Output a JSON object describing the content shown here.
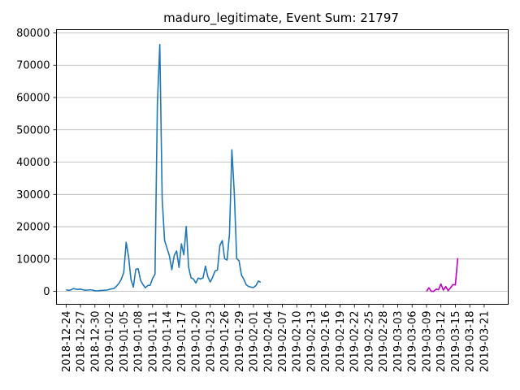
{
  "chart_data": {
    "type": "line",
    "title": "maduro_legitimate, Event Sum: 21797",
    "xlabel": "",
    "ylabel": "",
    "ylim": [
      -4000,
      81000
    ],
    "xlim": [
      "2018-12-22",
      "2019-03-26"
    ],
    "grid": {
      "y": true,
      "x": false
    },
    "legend": "none",
    "x_tick_labels": [
      "2018-12-24",
      "2018-12-27",
      "2018-12-30",
      "2019-01-02",
      "2019-01-05",
      "2019-01-08",
      "2019-01-11",
      "2019-01-14",
      "2019-01-17",
      "2019-01-20",
      "2019-01-23",
      "2019-01-26",
      "2019-01-29",
      "2019-02-01",
      "2019-02-04",
      "2019-02-07",
      "2019-02-10",
      "2019-02-13",
      "2019-02-16",
      "2019-02-19",
      "2019-02-22",
      "2019-02-25",
      "2019-02-28",
      "2019-03-03",
      "2019-03-06",
      "2019-03-09",
      "2019-03-12",
      "2019-03-15",
      "2019-03-18",
      "2019-03-21"
    ],
    "y_tick_labels": [
      "0",
      "10000",
      "20000",
      "30000",
      "40000",
      "50000",
      "60000",
      "70000",
      "80000"
    ],
    "y_ticks": [
      0,
      10000,
      20000,
      30000,
      40000,
      50000,
      60000,
      70000,
      80000
    ],
    "series": [
      {
        "color": "#1f77b4",
        "points": [
          [
            "2018-12-24T00:00",
            500
          ],
          [
            "2018-12-24T12:00",
            300
          ],
          [
            "2018-12-25T00:00",
            450
          ],
          [
            "2018-12-25T12:00",
            850
          ],
          [
            "2018-12-26T00:00",
            700
          ],
          [
            "2018-12-26T12:00",
            600
          ],
          [
            "2018-12-27T00:00",
            700
          ],
          [
            "2018-12-27T12:00",
            500
          ],
          [
            "2018-12-28T00:00",
            350
          ],
          [
            "2018-12-28T12:00",
            400
          ],
          [
            "2018-12-29T00:00",
            500
          ],
          [
            "2018-12-29T12:00",
            400
          ],
          [
            "2018-12-30T00:00",
            200
          ],
          [
            "2018-12-30T12:00",
            150
          ],
          [
            "2018-12-31T00:00",
            250
          ],
          [
            "2018-12-31T12:00",
            300
          ],
          [
            "2019-01-01T00:00",
            350
          ],
          [
            "2019-01-01T12:00",
            400
          ],
          [
            "2019-01-02T00:00",
            600
          ],
          [
            "2019-01-02T12:00",
            800
          ],
          [
            "2019-01-03T00:00",
            900
          ],
          [
            "2019-01-03T12:00",
            1600
          ],
          [
            "2019-01-04T00:00",
            2500
          ],
          [
            "2019-01-04T12:00",
            3800
          ],
          [
            "2019-01-05T00:00",
            5800
          ],
          [
            "2019-01-05T12:00",
            15200
          ],
          [
            "2019-01-06T00:00",
            10800
          ],
          [
            "2019-01-06T12:00",
            3700
          ],
          [
            "2019-01-07T00:00",
            1300
          ],
          [
            "2019-01-07T12:00",
            6800
          ],
          [
            "2019-01-08T00:00",
            7000
          ],
          [
            "2019-01-08T12:00",
            3400
          ],
          [
            "2019-01-09T00:00",
            2100
          ],
          [
            "2019-01-09T12:00",
            1100
          ],
          [
            "2019-01-10T00:00",
            1800
          ],
          [
            "2019-01-10T12:00",
            1900
          ],
          [
            "2019-01-11T00:00",
            4000
          ],
          [
            "2019-01-11T12:00",
            5300
          ],
          [
            "2019-01-12T00:00",
            57900
          ],
          [
            "2019-01-12T12:00",
            76400
          ],
          [
            "2019-01-13T00:00",
            28500
          ],
          [
            "2019-01-13T12:00",
            15700
          ],
          [
            "2019-01-14T00:00",
            13400
          ],
          [
            "2019-01-14T12:00",
            11000
          ],
          [
            "2019-01-15T00:00",
            6700
          ],
          [
            "2019-01-15T12:00",
            11100
          ],
          [
            "2019-01-16T00:00",
            12500
          ],
          [
            "2019-01-16T12:00",
            7400
          ],
          [
            "2019-01-17T00:00",
            14700
          ],
          [
            "2019-01-17T12:00",
            11300
          ],
          [
            "2019-01-18T00:00",
            20100
          ],
          [
            "2019-01-18T12:00",
            7400
          ],
          [
            "2019-01-19T00:00",
            4200
          ],
          [
            "2019-01-19T12:00",
            3800
          ],
          [
            "2019-01-20T00:00",
            2600
          ],
          [
            "2019-01-20T12:00",
            4100
          ],
          [
            "2019-01-21T00:00",
            3800
          ],
          [
            "2019-01-21T12:00",
            4200
          ],
          [
            "2019-01-22T00:00",
            7800
          ],
          [
            "2019-01-22T12:00",
            4500
          ],
          [
            "2019-01-23T00:00",
            2900
          ],
          [
            "2019-01-23T12:00",
            4400
          ],
          [
            "2019-01-24T00:00",
            6300
          ],
          [
            "2019-01-24T12:00",
            6600
          ],
          [
            "2019-01-25T00:00",
            14200
          ],
          [
            "2019-01-25T12:00",
            15700
          ],
          [
            "2019-01-26T00:00",
            10100
          ],
          [
            "2019-01-26T12:00",
            9700
          ],
          [
            "2019-01-27T00:00",
            17800
          ],
          [
            "2019-01-27T12:00",
            43800
          ],
          [
            "2019-01-28T00:00",
            30500
          ],
          [
            "2019-01-28T12:00",
            10200
          ],
          [
            "2019-01-29T00:00",
            9400
          ],
          [
            "2019-01-29T12:00",
            5000
          ],
          [
            "2019-01-30T00:00",
            3700
          ],
          [
            "2019-01-30T12:00",
            2000
          ],
          [
            "2019-01-31T00:00",
            1500
          ],
          [
            "2019-01-31T12:00",
            1300
          ],
          [
            "2019-02-01T00:00",
            1200
          ],
          [
            "2019-02-01T12:00",
            1800
          ],
          [
            "2019-02-02T00:00",
            3200
          ],
          [
            "2019-02-02T12:00",
            2800
          ]
        ]
      },
      {
        "color": "#bf00bf",
        "points": [
          [
            "2019-03-09T00:00",
            0
          ],
          [
            "2019-03-09T12:00",
            1100
          ],
          [
            "2019-03-10T00:00",
            0
          ],
          [
            "2019-03-10T12:00",
            0
          ],
          [
            "2019-03-11T00:00",
            700
          ],
          [
            "2019-03-11T12:00",
            500
          ],
          [
            "2019-03-12T00:00",
            2300
          ],
          [
            "2019-03-12T12:00",
            400
          ],
          [
            "2019-03-13T00:00",
            1500
          ],
          [
            "2019-03-13T12:00",
            200
          ],
          [
            "2019-03-14T00:00",
            1100
          ],
          [
            "2019-03-14T12:00",
            2100
          ],
          [
            "2019-03-15T00:00",
            2000
          ],
          [
            "2019-03-15T12:00",
            10300
          ]
        ]
      }
    ]
  }
}
